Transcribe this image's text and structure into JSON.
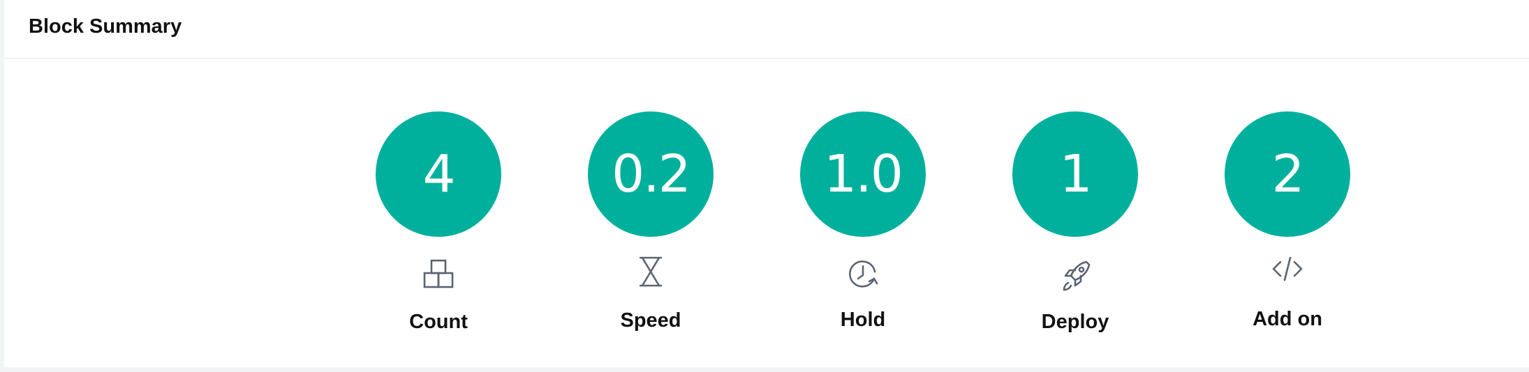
{
  "panel": {
    "title": "Block Summary"
  },
  "stats": [
    {
      "value": "4",
      "label": "Count",
      "icon": "blocks-icon"
    },
    {
      "value": "0.2",
      "label": "Speed",
      "icon": "hourglass-icon"
    },
    {
      "value": "1.0",
      "label": "Hold",
      "icon": "clock-icon"
    },
    {
      "value": "1",
      "label": "Deploy",
      "icon": "rocket-icon"
    },
    {
      "value": "2",
      "label": "Add on",
      "icon": "code-icon"
    }
  ],
  "colors": {
    "accent": "#00b09c",
    "icon": "#5a6470",
    "text": "#111111"
  }
}
